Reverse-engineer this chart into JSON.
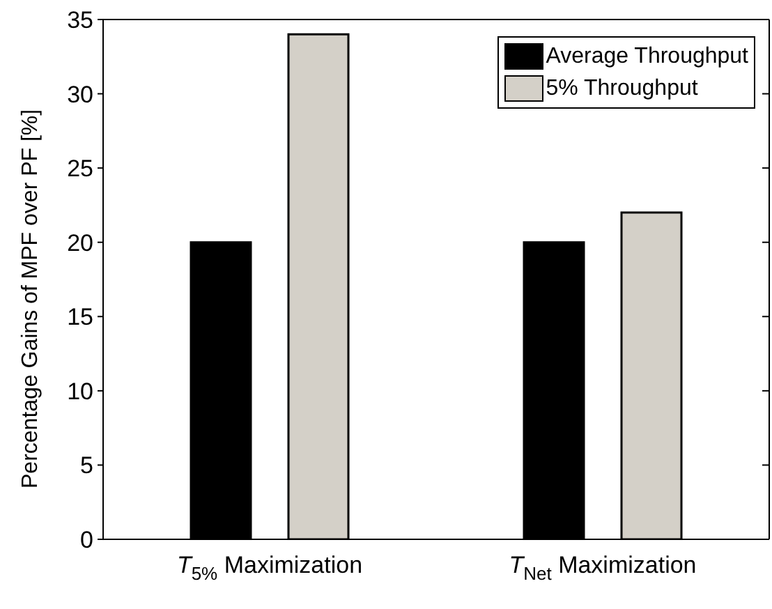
{
  "chart_data": {
    "type": "bar",
    "ylabel": "Percentage Gains of MPF over PF [%]",
    "categories": [
      "T$_{5%}$ Maximization",
      "T$_{Net}$ Maximization"
    ],
    "series": [
      {
        "name": "Average Throughput",
        "color": "#000000",
        "values": [
          20,
          20
        ]
      },
      {
        "name": "5% Throughput",
        "color": "#d4d0c8",
        "values": [
          34,
          22
        ]
      }
    ],
    "ylim": [
      0,
      35
    ],
    "yticks": [
      0,
      5,
      10,
      15,
      20,
      25,
      30,
      35
    ],
    "grid": false,
    "legend": "top right"
  }
}
